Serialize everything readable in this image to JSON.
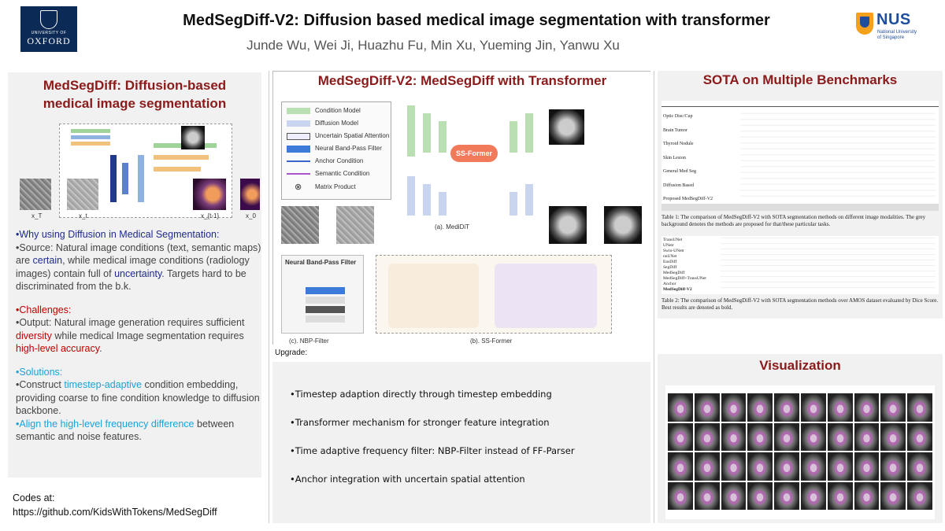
{
  "header": {
    "title": "MedSegDiff-V2: Diffusion based medical image segmentation with transformer",
    "authors": "Junde Wu, Wei Ji, Huazhu Fu, Min Xu, Yueming Jin, Yanwu Xu",
    "oxford_logo": {
      "line1": "UNIVERSITY OF",
      "line2": "OXFORD"
    },
    "nus_logo": {
      "name": "NUS",
      "sub1": "National University",
      "sub2": "of Singapore"
    }
  },
  "left_panel": {
    "title_line1": "MedSegDiff: Diffusion-based",
    "title_line2": "medical image segmentation",
    "figure_labels": [
      "x_T",
      "x_t",
      "x_{t-1}",
      "x_0"
    ],
    "why_heading": "•Why using Diffusion in Medical Segmentation:",
    "source_a": "•Source: Natural image conditions (text, semantic maps) are ",
    "source_certain": "certain",
    "source_b": ", while medical image conditions (radiology images) contain full of ",
    "source_uncertainty": "uncertainty",
    "source_c": ". Targets hard to be discriminated from the b.k.",
    "challenges_heading": "•Challenges:",
    "output_a": "•Output: Natural image generation requires sufficient ",
    "output_diversity": "diversity",
    "output_b": " while medical Image segmentation requires ",
    "output_accuracy": "high-level accuracy",
    "output_c": ".",
    "solutions_heading": "•Solutions:",
    "sol1_a": "•Construct ",
    "sol1_hl": "timestep-adaptive",
    "sol1_b": " condition embedding, providing coarse to fine condition knowledge to diffusion backbone.",
    "sol2_hl": "•Align the high-level frequency difference",
    "sol2_b": " between semantic and noise features."
  },
  "codes": {
    "line1": "Codes at:",
    "line2": "https://github.com/KidsWithTokens/MedSegDiff"
  },
  "middle_panel": {
    "title": "MedSegDiff-V2: MedSegDiff with Transformer",
    "legend": [
      "Condition Model",
      "Diffusion Model",
      "Uncertain Spatial Attention",
      "Neural Band-Pass Filter",
      "Anchor Condition",
      "Semantic Condition",
      "Matrix Product"
    ],
    "module_labels": {
      "ssformer": "SS-Former",
      "medidit": "(a). MediDiT",
      "nbp": "(c). NBP-Filter",
      "ssformer_cap": "(b). SS-Former",
      "nbp_title": "Neural Band-Pass Filter"
    },
    "upgrade_label": "Upgrade:",
    "upgrades": [
      "•Timestep adaption directly through timestep embedding",
      "•Transformer mechanism for stronger feature integration",
      "•Time adaptive frequency filter: NBP-Filter instead of FF-Parser",
      "•Anchor integration with uncertain spatial attention"
    ]
  },
  "right_panel": {
    "sota_title": "SOTA on Multiple Benchmarks",
    "table1_caption": "Table 1: The comparison of MedSegDiff-V2 with SOTA segmentation methods on different image modalities. The grey background denotes the methods are proposed for that/these particular tasks.",
    "table2_caption": "Table 2: The comparison of MedSegDiff-V2 with SOTA segmentation methods over AMOS dataset evaluated by Dice Score. Best results are denoted as bold.",
    "table1_rows": [
      "Optic Disc/Cup",
      "Brain Tumor",
      "Thyroid Nodule",
      "Skin Lesion",
      "General Med Seg",
      "Diffusion Based",
      "Proposed  MedSegDiff-V2"
    ],
    "table2_rows": [
      "TransUNet",
      "UNetr",
      "Swin-UNetr",
      "nnUNet",
      "EnsDiff",
      "SegDiff",
      "MedSegDiff",
      "MedSegDiff+TransUNet",
      "Anchor",
      "MedSegDiff-V2"
    ],
    "vis_title": "Visualization"
  }
}
